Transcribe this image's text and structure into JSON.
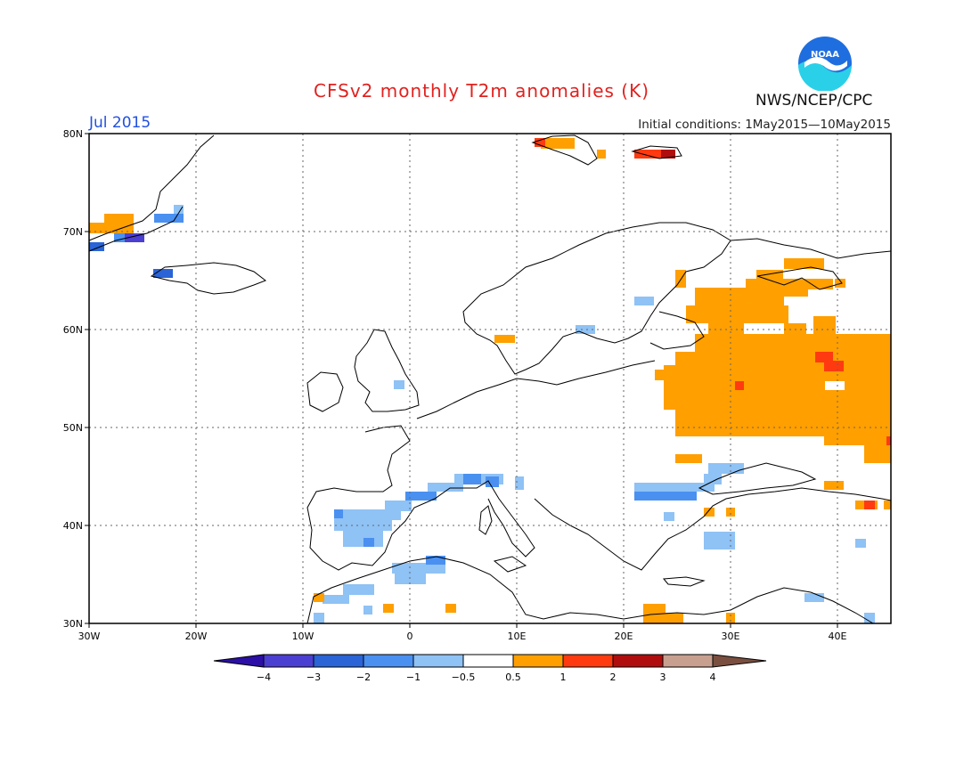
{
  "title": "CFSv2 monthly T2m anomalies (K)",
  "valid_month": "Jul 2015",
  "initial_conditions": "Initial conditions: 1May2015—10May2015",
  "agency": "NWS/NCEP/CPC",
  "logo_text": "NOAA",
  "lat_labels": [
    "80N",
    "70N",
    "60N",
    "50N",
    "40N",
    "30N"
  ],
  "lon_labels": [
    "30W",
    "20W",
    "10W",
    "0",
    "10E",
    "20E",
    "30E",
    "40E"
  ],
  "colorbar": {
    "bins": [
      {
        "color": "#2c0fa6"
      },
      {
        "color": "#4b3fd1"
      },
      {
        "color": "#2a64d6"
      },
      {
        "color": "#4a90f0"
      },
      {
        "color": "#8fc2f5"
      },
      {
        "color": "#ffffff"
      },
      {
        "color": "#ff9f00"
      },
      {
        "color": "#ff3a10"
      },
      {
        "color": "#b00e0e"
      },
      {
        "color": "#c8a090"
      },
      {
        "color": "#7a4f3f"
      }
    ],
    "labels": [
      "−4",
      "−3",
      "−2",
      "−1",
      "−0.5",
      "0.5",
      "1",
      "2",
      "3",
      "4"
    ]
  },
  "anomaly_colors": {
    "light_blue": "#8fc2f5",
    "blue": "#4a90f0",
    "dark_blue": "#2a64d6",
    "purple": "#4b3fd1",
    "orange": "#ff9f00",
    "red": "#ff3a10",
    "dark_red": "#b00e0e"
  }
}
